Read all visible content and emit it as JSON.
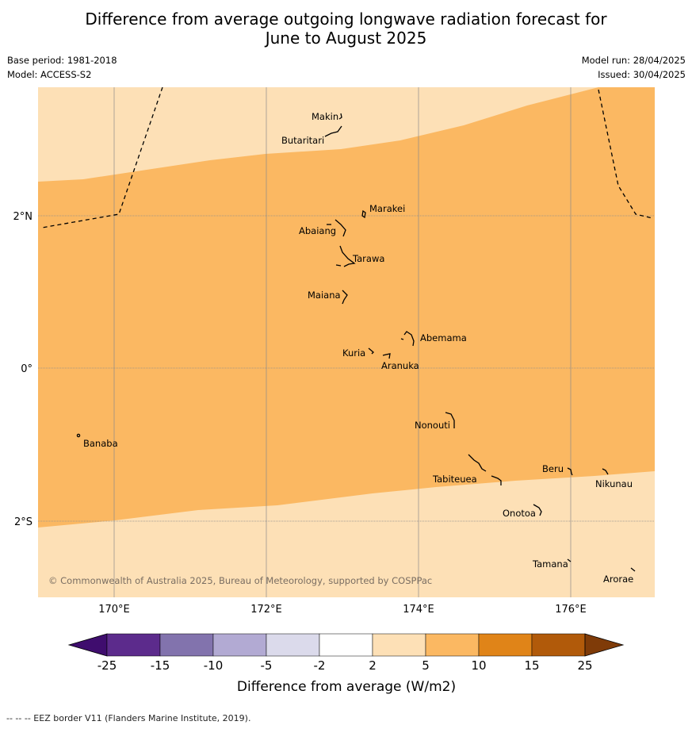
{
  "header": {
    "title_line1": "Difference from average outgoing longwave radiation forecast for",
    "title_line2": "June to August 2025",
    "base_period": "Base period: 1981-2018",
    "model": "Model: ACCESS-S2",
    "model_run": "Model run: 28/04/2025",
    "issued": "Issued: 30/04/2025"
  },
  "map": {
    "lat_labels": [
      "2°N",
      "0°",
      "2°S"
    ],
    "lon_labels": [
      "170°E",
      "172°E",
      "174°E",
      "176°E"
    ],
    "copyright": "© Commonwealth of Australia 2025, Bureau of Meteorology, supported by COSPPac",
    "islands": [
      {
        "name": "Makin"
      },
      {
        "name": "Butaritari"
      },
      {
        "name": "Marakei"
      },
      {
        "name": "Abaiang"
      },
      {
        "name": "Tarawa"
      },
      {
        "name": "Maiana"
      },
      {
        "name": "Abemama"
      },
      {
        "name": "Kuria"
      },
      {
        "name": "Aranuka"
      },
      {
        "name": "Nonouti"
      },
      {
        "name": "Banaba"
      },
      {
        "name": "Beru"
      },
      {
        "name": "Tabiteuea"
      },
      {
        "name": "Nikunau"
      },
      {
        "name": "Onotoa"
      },
      {
        "name": "Tamana"
      },
      {
        "name": "Arorae"
      }
    ],
    "category_colors": {
      "2 to 5": "#fde0b6",
      "5 to 10": "#fbb862"
    }
  },
  "legend": {
    "ticks": [
      "-25",
      "-15",
      "-10",
      "-5",
      "-2",
      "2",
      "5",
      "10",
      "15",
      "25"
    ],
    "colors": [
      "#3f0d6e",
      "#5c2b8c",
      "#8273ad",
      "#b2aad3",
      "#dbdaeb",
      "#ffffff",
      "#fde0b6",
      "#fbb862",
      "#e08418",
      "#b15a0a",
      "#7f3b08"
    ],
    "label": "Difference from average (W/m2)"
  },
  "footer": {
    "eez_note": "--  --  -- EEZ border V11 (Flanders Marine Institute, 2019)."
  }
}
